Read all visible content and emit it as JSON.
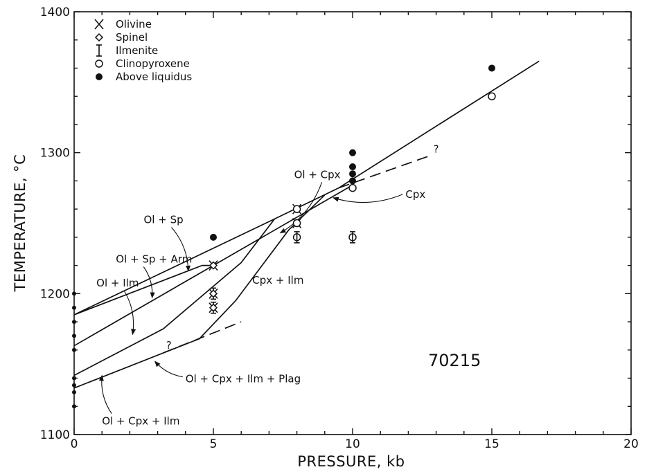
{
  "chart_data": {
    "type": "scatter",
    "xlabel": "PRESSURE, kb",
    "ylabel": "TEMPERATURE, °C",
    "xlim": [
      0,
      20
    ],
    "ylim": [
      1100,
      1400
    ],
    "x_ticks": [
      0,
      5,
      10,
      15,
      20
    ],
    "y_ticks": [
      1100,
      1200,
      1300,
      1400
    ],
    "grid": false,
    "legend_position": "top-left",
    "sample_id": "70215",
    "legend": [
      {
        "symbol": "cross",
        "label": "Olivine"
      },
      {
        "symbol": "diamond",
        "label": "Spinel"
      },
      {
        "symbol": "ibar",
        "label": "Ilmenite"
      },
      {
        "symbol": "open-circle",
        "label": "Clinopyroxene"
      },
      {
        "symbol": "filled-circle",
        "label": "Above liquidus"
      }
    ],
    "experiments": [
      {
        "p": 0,
        "t": 1200,
        "phases": [
          "filled-circle"
        ]
      },
      {
        "p": 0,
        "t": 1190,
        "phases": [
          "filled-circle"
        ]
      },
      {
        "p": 0,
        "t": 1180,
        "phases": [
          "filled-circle"
        ]
      },
      {
        "p": 0,
        "t": 1170,
        "phases": [
          "filled-circle"
        ]
      },
      {
        "p": 0,
        "t": 1160,
        "phases": [
          "filled-circle"
        ]
      },
      {
        "p": 0,
        "t": 1140,
        "phases": [
          "filled-circle"
        ]
      },
      {
        "p": 0,
        "t": 1135,
        "phases": [
          "filled-circle"
        ]
      },
      {
        "p": 0,
        "t": 1130,
        "phases": [
          "filled-circle"
        ]
      },
      {
        "p": 0,
        "t": 1120,
        "phases": [
          "filled-circle"
        ]
      },
      {
        "p": 5,
        "t": 1240,
        "phases": [
          "filled-circle"
        ]
      },
      {
        "p": 5,
        "t": 1220,
        "phases": [
          "cross",
          "diamond"
        ]
      },
      {
        "p": 5,
        "t": 1200,
        "phases": [
          "cross",
          "ibar",
          "diamond"
        ]
      },
      {
        "p": 5,
        "t": 1190,
        "phases": [
          "cross",
          "ibar",
          "diamond"
        ]
      },
      {
        "p": 8,
        "t": 1260,
        "phases": [
          "cross",
          "open-circle"
        ]
      },
      {
        "p": 8,
        "t": 1250,
        "phases": [
          "cross",
          "open-circle"
        ]
      },
      {
        "p": 8,
        "t": 1240,
        "phases": [
          "open-circle",
          "ibar"
        ]
      },
      {
        "p": 10,
        "t": 1300,
        "phases": [
          "filled-circle"
        ]
      },
      {
        "p": 10,
        "t": 1290,
        "phases": [
          "filled-circle"
        ]
      },
      {
        "p": 10,
        "t": 1285,
        "phases": [
          "filled-circle"
        ]
      },
      {
        "p": 10,
        "t": 1280,
        "phases": [
          "filled-circle"
        ]
      },
      {
        "p": 10,
        "t": 1275,
        "phases": [
          "open-circle"
        ]
      },
      {
        "p": 10,
        "t": 1240,
        "phases": [
          "open-circle",
          "ibar"
        ]
      },
      {
        "p": 15,
        "t": 1360,
        "phases": [
          "filled-circle"
        ]
      },
      {
        "p": 15,
        "t": 1340,
        "phases": [
          "open-circle"
        ]
      }
    ],
    "boundaries": [
      {
        "style": "solid",
        "points": [
          [
            0,
            1185
          ],
          [
            7.2,
            1253
          ],
          [
            9.5,
            1275
          ],
          [
            16.7,
            1365
          ]
        ]
      },
      {
        "style": "solid",
        "points": [
          [
            0,
            1185
          ],
          [
            4.6,
            1220
          ],
          [
            5.0,
            1220
          ],
          [
            10.0,
            1277
          ]
        ]
      },
      {
        "style": "solid",
        "points": [
          [
            0,
            1163
          ],
          [
            5.0,
            1220
          ]
        ]
      },
      {
        "style": "solid",
        "points": [
          [
            0,
            1142
          ],
          [
            3.2,
            1175
          ],
          [
            6.0,
            1222
          ],
          [
            7.2,
            1253
          ]
        ]
      },
      {
        "style": "solid",
        "points": [
          [
            0,
            1133
          ],
          [
            4.5,
            1168
          ],
          [
            5.8,
            1195
          ],
          [
            7.7,
            1245
          ],
          [
            9.0,
            1270
          ]
        ]
      },
      {
        "style": "dashed",
        "points": [
          [
            9.5,
            1275
          ],
          [
            12.8,
            1298
          ]
        ]
      },
      {
        "style": "dashed",
        "points": [
          [
            3.2,
            1158
          ],
          [
            6.0,
            1180
          ]
        ]
      }
    ],
    "annotations": [
      {
        "label": "Ol + Cpx",
        "p": 7.9,
        "t": 1282,
        "arrow_to": [
          7.4,
          1243
        ]
      },
      {
        "label": "Cpx",
        "p": 11.9,
        "t": 1268,
        "arrow_to": [
          9.3,
          1268
        ]
      },
      {
        "label": "Ol + Sp",
        "p": 2.5,
        "t": 1250,
        "arrow_to": [
          4.1,
          1216
        ]
      },
      {
        "label": "Ol + Sp + Arm",
        "p": 1.5,
        "t": 1222,
        "arrow_to": [
          2.8,
          1197
        ]
      },
      {
        "label": "Ol + Ilm",
        "p": 0.8,
        "t": 1205,
        "arrow_to": [
          2.1,
          1171
        ]
      },
      {
        "label": "Cpx + Ilm",
        "p": 6.4,
        "t": 1207,
        "arrow_to": null
      },
      {
        "label": "Ol + Cpx + Ilm + Plag",
        "p": 4.0,
        "t": 1137,
        "arrow_to": [
          2.9,
          1152
        ]
      },
      {
        "label": "Ol + Cpx + Ilm",
        "p": 1.0,
        "t": 1107,
        "arrow_to": [
          1.0,
          1142
        ]
      }
    ],
    "question_marks": [
      {
        "label": "?",
        "p": 13.0,
        "t": 1300
      },
      {
        "label": "?",
        "p": 3.4,
        "t": 1161
      }
    ]
  }
}
